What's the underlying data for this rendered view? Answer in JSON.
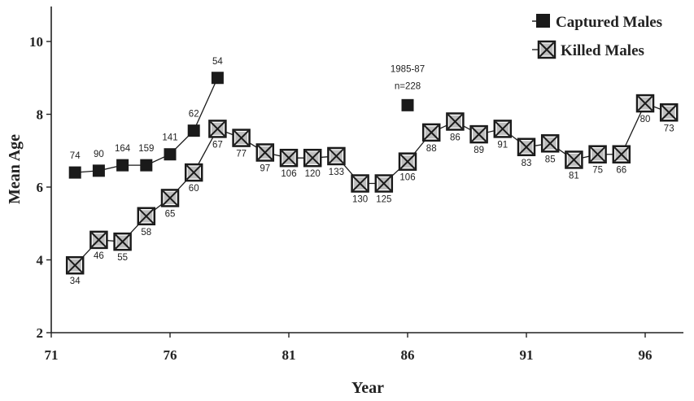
{
  "chart_data": {
    "type": "line",
    "title": "",
    "xlabel": "Year",
    "ylabel": "Mean Age",
    "xlim": [
      71,
      98
    ],
    "ylim": [
      2,
      11
    ],
    "xticks": [
      71,
      76,
      81,
      86,
      91,
      96
    ],
    "yticks": [
      2,
      4,
      6,
      8,
      10
    ],
    "grid": false,
    "legend_position": "top-right",
    "series": [
      {
        "name": "Captured Males",
        "marker": "filled-square",
        "connected": true,
        "color": "#1a1a1a",
        "points": [
          {
            "x": 72,
            "y": 6.4,
            "label": "74"
          },
          {
            "x": 73,
            "y": 6.45,
            "label": "90"
          },
          {
            "x": 74,
            "y": 6.6,
            "label": "164"
          },
          {
            "x": 75,
            "y": 6.6,
            "label": "159"
          },
          {
            "x": 76,
            "y": 6.9,
            "label": "141"
          },
          {
            "x": 77,
            "y": 7.55,
            "label": "62"
          },
          {
            "x": 78,
            "y": 9.0,
            "label": "54"
          }
        ]
      },
      {
        "name": "Killed Males",
        "marker": "crossed-square",
        "connected": true,
        "color": "#1a1a1a",
        "points": [
          {
            "x": 72,
            "y": 3.85,
            "label": "34"
          },
          {
            "x": 73,
            "y": 4.55,
            "label": "46"
          },
          {
            "x": 74,
            "y": 4.5,
            "label": "55"
          },
          {
            "x": 75,
            "y": 5.2,
            "label": "58"
          },
          {
            "x": 76,
            "y": 5.7,
            "label": "65"
          },
          {
            "x": 77,
            "y": 6.4,
            "label": "60"
          },
          {
            "x": 78,
            "y": 7.6,
            "label": "67"
          },
          {
            "x": 79,
            "y": 7.35,
            "label": "77"
          },
          {
            "x": 80,
            "y": 6.95,
            "label": "97"
          },
          {
            "x": 81,
            "y": 6.8,
            "label": "106"
          },
          {
            "x": 82,
            "y": 6.8,
            "label": "120"
          },
          {
            "x": 83,
            "y": 6.85,
            "label": "133"
          },
          {
            "x": 84,
            "y": 6.1,
            "label": "130"
          },
          {
            "x": 85,
            "y": 6.1,
            "label": "125"
          },
          {
            "x": 86,
            "y": 6.7,
            "label": "106"
          },
          {
            "x": 87,
            "y": 7.5,
            "label": "88"
          },
          {
            "x": 88,
            "y": 7.8,
            "label": "86"
          },
          {
            "x": 89,
            "y": 7.45,
            "label": "89"
          },
          {
            "x": 90,
            "y": 7.6,
            "label": "91"
          },
          {
            "x": 91,
            "y": 7.1,
            "label": "83"
          },
          {
            "x": 92,
            "y": 7.2,
            "label": "85"
          },
          {
            "x": 93,
            "y": 6.75,
            "label": "81"
          },
          {
            "x": 94,
            "y": 6.9,
            "label": "75"
          },
          {
            "x": 95,
            "y": 6.9,
            "label": "66"
          },
          {
            "x": 96,
            "y": 8.3,
            "label": "80"
          },
          {
            "x": 97,
            "y": 8.05,
            "label": "73"
          }
        ]
      }
    ],
    "extra_points": [
      {
        "x": 86,
        "y": 8.25,
        "marker": "filled-square",
        "annotation": [
          "1985-87",
          "n=228"
        ]
      }
    ]
  }
}
